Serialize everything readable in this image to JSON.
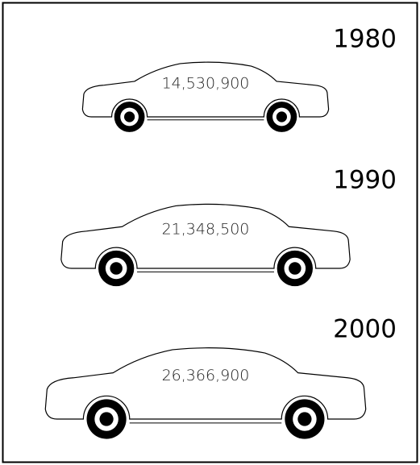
{
  "chart_data": {
    "type": "pictogram",
    "categories": [
      "1980",
      "1990",
      "2000"
    ],
    "values": [
      14530900,
      21348500,
      26366900
    ],
    "value_labels": [
      "14,530,900",
      "21,348,500",
      "26,366,900"
    ],
    "color": "#000000"
  }
}
